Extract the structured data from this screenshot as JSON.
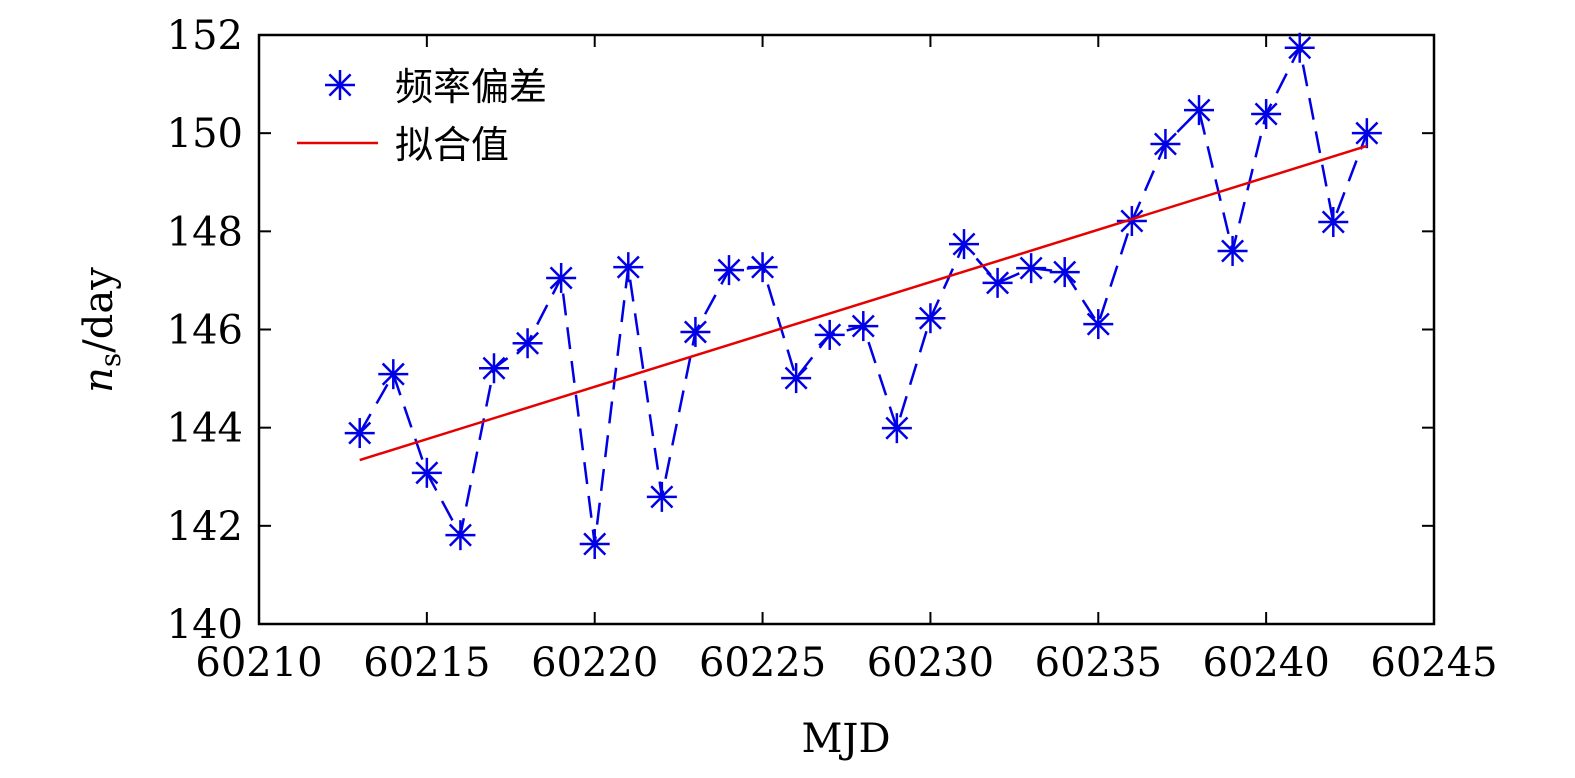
{
  "chart_data": {
    "type": "line",
    "title": "",
    "xlabel": "MJD",
    "ylabel_main": "n",
    "ylabel_sub": "s",
    "ylabel_unit": "/day",
    "xlim": [
      60210,
      60245
    ],
    "ylim": [
      140,
      152
    ],
    "xticks": [
      60210,
      60215,
      60220,
      60225,
      60230,
      60235,
      60240,
      60245
    ],
    "yticks": [
      140,
      142,
      144,
      146,
      148,
      150,
      152
    ],
    "legend_position": "top-left",
    "series": [
      {
        "name": "频率偏差",
        "style": "dashed-with-star-markers",
        "color": "#0000e6",
        "x": [
          60213,
          60214,
          60215,
          60216,
          60217,
          60218,
          60219,
          60220,
          60221,
          60222,
          60223,
          60224,
          60225,
          60226,
          60227,
          60228,
          60229,
          60230,
          60231,
          60232,
          60233,
          60234,
          60235,
          60236,
          60237,
          60238,
          60239,
          60240,
          60241,
          60242,
          60243
        ],
        "y": [
          143.89,
          145.09,
          143.08,
          141.81,
          145.21,
          145.72,
          147.05,
          141.63,
          147.27,
          142.59,
          145.95,
          147.21,
          147.27,
          145.01,
          145.89,
          146.07,
          143.99,
          146.23,
          147.74,
          146.95,
          147.25,
          147.17,
          146.11,
          148.21,
          149.78,
          150.47,
          147.6,
          150.39,
          151.74,
          148.19,
          150.0
        ]
      },
      {
        "name": "拟合值",
        "style": "solid",
        "color": "#e60000",
        "x": [
          60213,
          60243
        ],
        "y": [
          143.34,
          149.74
        ]
      }
    ]
  }
}
